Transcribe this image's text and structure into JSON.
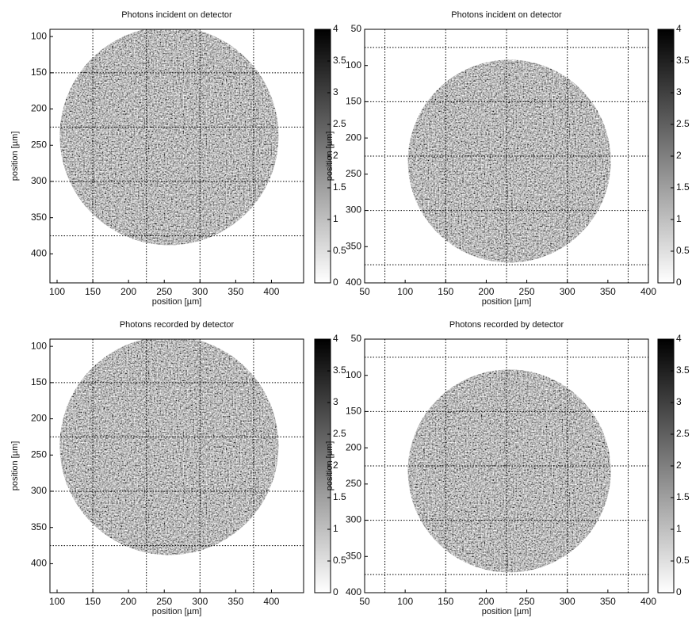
{
  "chart_data": [
    {
      "type": "heatmap",
      "title": "Photons incident on detector",
      "xlabel": "position [µm]",
      "ylabel": "position [µm]",
      "xlim": [
        90,
        445
      ],
      "ylim": [
        90,
        440
      ],
      "y_reversed": true,
      "xticks": [
        100,
        150,
        200,
        250,
        300,
        350,
        400
      ],
      "yticks": [
        100,
        150,
        200,
        250,
        300,
        350,
        400
      ],
      "gridlines_x": [
        150,
        225,
        300,
        375
      ],
      "gridlines_y": [
        150,
        225,
        300,
        375
      ],
      "colorbar_lim": [
        0,
        4
      ],
      "colorbar_ticks": [
        0,
        0.5,
        1,
        1.5,
        2,
        2.5,
        3,
        3.5,
        4
      ]
    },
    {
      "type": "heatmap",
      "title": "Photons incident on detector",
      "xlabel": "position [µm]",
      "ylabel": "position [µm]",
      "xlim": [
        50,
        400
      ],
      "ylim": [
        50,
        400
      ],
      "y_reversed": true,
      "xticks": [
        50,
        100,
        150,
        200,
        250,
        300,
        350,
        400
      ],
      "yticks": [
        50,
        100,
        150,
        200,
        250,
        300,
        350,
        400
      ],
      "gridlines_x": [
        75,
        150,
        225,
        300,
        375
      ],
      "gridlines_y": [
        75,
        150,
        225,
        300,
        375
      ],
      "colorbar_lim": [
        0,
        4
      ],
      "colorbar_ticks": [
        0,
        0.5,
        1,
        1.5,
        2,
        2.5,
        3,
        3.5,
        4
      ]
    },
    {
      "type": "heatmap",
      "title": "Photons recorded by detector",
      "xlabel": "position [µm]",
      "ylabel": "position [µm]",
      "xlim": [
        90,
        445
      ],
      "ylim": [
        90,
        440
      ],
      "y_reversed": true,
      "xticks": [
        100,
        150,
        200,
        250,
        300,
        350,
        400
      ],
      "yticks": [
        100,
        150,
        200,
        250,
        300,
        350,
        400
      ],
      "gridlines_x": [
        150,
        225,
        300,
        375
      ],
      "gridlines_y": [
        150,
        225,
        300,
        375
      ],
      "colorbar_lim": [
        0,
        4
      ],
      "colorbar_ticks": [
        0,
        0.5,
        1,
        1.5,
        2,
        2.5,
        3,
        3.5,
        4
      ]
    },
    {
      "type": "heatmap",
      "title": "Photons recorded by detector",
      "xlabel": "position [µm]",
      "ylabel": "position [µm]",
      "xlim": [
        50,
        400
      ],
      "ylim": [
        50,
        400
      ],
      "y_reversed": true,
      "xticks": [
        50,
        100,
        150,
        200,
        250,
        300,
        350,
        400
      ],
      "yticks": [
        50,
        100,
        150,
        200,
        250,
        300,
        350,
        400
      ],
      "gridlines_x": [
        75,
        150,
        225,
        300,
        375
      ],
      "gridlines_y": [
        75,
        150,
        225,
        300,
        375
      ],
      "colorbar_lim": [
        0,
        4
      ],
      "colorbar_ticks": [
        0,
        0.5,
        1,
        1.5,
        2,
        2.5,
        3,
        3.5,
        4
      ]
    }
  ]
}
